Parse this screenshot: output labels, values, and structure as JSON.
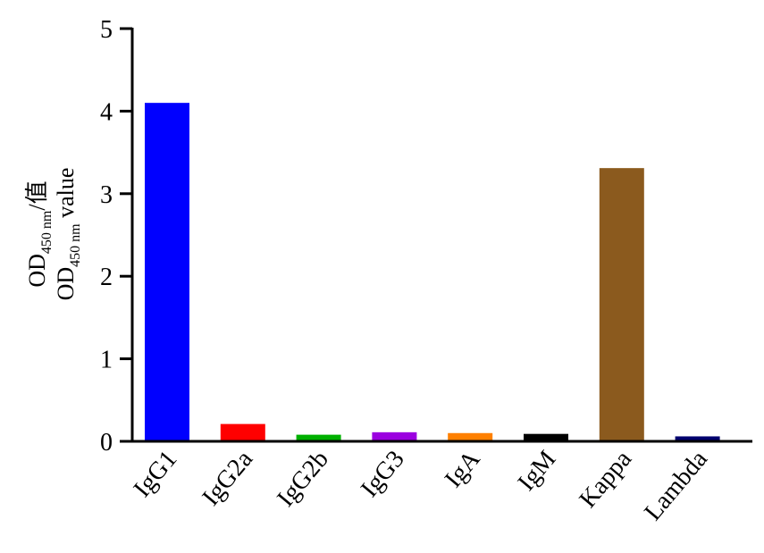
{
  "chart_data": {
    "type": "bar",
    "title": "",
    "xlabel": "",
    "ylabel_line1": {
      "prefix": "OD",
      "subscript": "450 nm",
      "suffix": "/值"
    },
    "ylabel_line2": {
      "prefix": "OD",
      "subscript": "450 nm",
      "suffix": " value"
    },
    "ylim": [
      0,
      5
    ],
    "yticks": [
      "0",
      "1",
      "2",
      "3",
      "4",
      "5"
    ],
    "categories": [
      "IgG1",
      "IgG2a",
      "IgG2b",
      "IgG3",
      "IgA",
      "IgM",
      "Kappa",
      "Lambda"
    ],
    "values": [
      4.1,
      0.21,
      0.08,
      0.11,
      0.1,
      0.09,
      3.31,
      0.06
    ],
    "colors": [
      "#0000FF",
      "#FF0000",
      "#00B000",
      "#9B00E0",
      "#FF8000",
      "#000000",
      "#8B5A1E",
      "#00006E"
    ],
    "grid": false,
    "legend": "none"
  }
}
